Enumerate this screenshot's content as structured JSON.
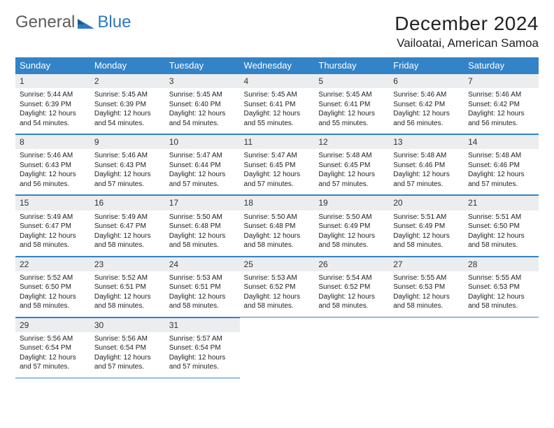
{
  "logo": {
    "word1": "General",
    "word2": "Blue"
  },
  "title": "December 2024",
  "location": "Vailoatai, American Samoa",
  "colors": {
    "header_bg": "#3283c7",
    "header_fg": "#ffffff",
    "daynum_bg": "#ebedef",
    "rule": "#3283c7",
    "logo_gray": "#5c5c5c",
    "logo_blue": "#2f78bd"
  },
  "weekdays": [
    "Sunday",
    "Monday",
    "Tuesday",
    "Wednesday",
    "Thursday",
    "Friday",
    "Saturday"
  ],
  "weeks": [
    [
      {
        "n": "1",
        "sr": "5:44 AM",
        "ss": "6:39 PM",
        "dl": "12 hours and 54 minutes."
      },
      {
        "n": "2",
        "sr": "5:45 AM",
        "ss": "6:39 PM",
        "dl": "12 hours and 54 minutes."
      },
      {
        "n": "3",
        "sr": "5:45 AM",
        "ss": "6:40 PM",
        "dl": "12 hours and 54 minutes."
      },
      {
        "n": "4",
        "sr": "5:45 AM",
        "ss": "6:41 PM",
        "dl": "12 hours and 55 minutes."
      },
      {
        "n": "5",
        "sr": "5:45 AM",
        "ss": "6:41 PM",
        "dl": "12 hours and 55 minutes."
      },
      {
        "n": "6",
        "sr": "5:46 AM",
        "ss": "6:42 PM",
        "dl": "12 hours and 56 minutes."
      },
      {
        "n": "7",
        "sr": "5:46 AM",
        "ss": "6:42 PM",
        "dl": "12 hours and 56 minutes."
      }
    ],
    [
      {
        "n": "8",
        "sr": "5:46 AM",
        "ss": "6:43 PM",
        "dl": "12 hours and 56 minutes."
      },
      {
        "n": "9",
        "sr": "5:46 AM",
        "ss": "6:43 PM",
        "dl": "12 hours and 57 minutes."
      },
      {
        "n": "10",
        "sr": "5:47 AM",
        "ss": "6:44 PM",
        "dl": "12 hours and 57 minutes."
      },
      {
        "n": "11",
        "sr": "5:47 AM",
        "ss": "6:45 PM",
        "dl": "12 hours and 57 minutes."
      },
      {
        "n": "12",
        "sr": "5:48 AM",
        "ss": "6:45 PM",
        "dl": "12 hours and 57 minutes."
      },
      {
        "n": "13",
        "sr": "5:48 AM",
        "ss": "6:46 PM",
        "dl": "12 hours and 57 minutes."
      },
      {
        "n": "14",
        "sr": "5:48 AM",
        "ss": "6:46 PM",
        "dl": "12 hours and 57 minutes."
      }
    ],
    [
      {
        "n": "15",
        "sr": "5:49 AM",
        "ss": "6:47 PM",
        "dl": "12 hours and 58 minutes."
      },
      {
        "n": "16",
        "sr": "5:49 AM",
        "ss": "6:47 PM",
        "dl": "12 hours and 58 minutes."
      },
      {
        "n": "17",
        "sr": "5:50 AM",
        "ss": "6:48 PM",
        "dl": "12 hours and 58 minutes."
      },
      {
        "n": "18",
        "sr": "5:50 AM",
        "ss": "6:48 PM",
        "dl": "12 hours and 58 minutes."
      },
      {
        "n": "19",
        "sr": "5:50 AM",
        "ss": "6:49 PM",
        "dl": "12 hours and 58 minutes."
      },
      {
        "n": "20",
        "sr": "5:51 AM",
        "ss": "6:49 PM",
        "dl": "12 hours and 58 minutes."
      },
      {
        "n": "21",
        "sr": "5:51 AM",
        "ss": "6:50 PM",
        "dl": "12 hours and 58 minutes."
      }
    ],
    [
      {
        "n": "22",
        "sr": "5:52 AM",
        "ss": "6:50 PM",
        "dl": "12 hours and 58 minutes."
      },
      {
        "n": "23",
        "sr": "5:52 AM",
        "ss": "6:51 PM",
        "dl": "12 hours and 58 minutes."
      },
      {
        "n": "24",
        "sr": "5:53 AM",
        "ss": "6:51 PM",
        "dl": "12 hours and 58 minutes."
      },
      {
        "n": "25",
        "sr": "5:53 AM",
        "ss": "6:52 PM",
        "dl": "12 hours and 58 minutes."
      },
      {
        "n": "26",
        "sr": "5:54 AM",
        "ss": "6:52 PM",
        "dl": "12 hours and 58 minutes."
      },
      {
        "n": "27",
        "sr": "5:55 AM",
        "ss": "6:53 PM",
        "dl": "12 hours and 58 minutes."
      },
      {
        "n": "28",
        "sr": "5:55 AM",
        "ss": "6:53 PM",
        "dl": "12 hours and 58 minutes."
      }
    ],
    [
      {
        "n": "29",
        "sr": "5:56 AM",
        "ss": "6:54 PM",
        "dl": "12 hours and 57 minutes."
      },
      {
        "n": "30",
        "sr": "5:56 AM",
        "ss": "6:54 PM",
        "dl": "12 hours and 57 minutes."
      },
      {
        "n": "31",
        "sr": "5:57 AM",
        "ss": "6:54 PM",
        "dl": "12 hours and 57 minutes."
      },
      null,
      null,
      null,
      null
    ]
  ],
  "labels": {
    "sunrise": "Sunrise:",
    "sunset": "Sunset:",
    "daylight": "Daylight:"
  }
}
